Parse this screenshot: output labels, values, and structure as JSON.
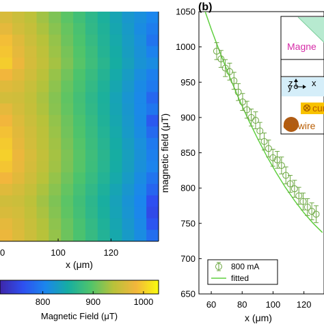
{
  "panel_label": "(b)",
  "colors": {
    "fit_line": "#5fcf3f",
    "marker": "#6aa63f",
    "inset_magenta": "#d62ba7",
    "inset_cu": "#b85c00",
    "colormap": [
      "#3e26a8",
      "#2e4ff0",
      "#1b86ed",
      "#16ada2",
      "#4fc46b",
      "#b8c23a",
      "#f2b63c",
      "#f9fb0e"
    ]
  },
  "chart_data": [
    {
      "type": "heatmap",
      "xlabel": "x (μm)",
      "x_ticks": [
        "100",
        "120"
      ],
      "x_tick_values": [
        100,
        120
      ],
      "x_edge_tick": "0",
      "xlim": [
        78,
        138
      ],
      "colorbar": {
        "label": "Magnetic Field (μT)",
        "ticks": [
          "800",
          "900",
          "1000"
        ],
        "tick_values": [
          800,
          900,
          1000
        ],
        "range": [
          715,
          1030
        ]
      },
      "rows": 20,
      "cols": 13,
      "values": [
        [
          965,
          955,
          945,
          930,
          915,
          900,
          885,
          870,
          855,
          840,
          825,
          815,
          805
        ],
        [
          975,
          960,
          950,
          935,
          920,
          905,
          890,
          872,
          858,
          842,
          828,
          812,
          798
        ],
        [
          990,
          970,
          955,
          940,
          925,
          908,
          893,
          876,
          860,
          845,
          830,
          816,
          790
        ],
        [
          995,
          975,
          960,
          945,
          928,
          912,
          896,
          880,
          862,
          848,
          832,
          818,
          802
        ],
        [
          1000,
          980,
          962,
          948,
          932,
          915,
          898,
          882,
          866,
          850,
          835,
          820,
          812
        ],
        [
          985,
          972,
          958,
          942,
          926,
          910,
          893,
          878,
          862,
          846,
          830,
          814,
          800
        ],
        [
          970,
          965,
          952,
          938,
          922,
          905,
          890,
          874,
          858,
          842,
          826,
          810,
          795
        ],
        [
          960,
          958,
          948,
          934,
          918,
          902,
          886,
          870,
          855,
          838,
          822,
          808,
          780
        ],
        [
          975,
          962,
          950,
          936,
          920,
          904,
          888,
          872,
          856,
          840,
          824,
          808,
          792
        ],
        [
          985,
          968,
          954,
          940,
          924,
          908,
          892,
          875,
          858,
          842,
          826,
          810,
          768
        ],
        [
          992,
          972,
          958,
          943,
          927,
          910,
          894,
          878,
          861,
          845,
          828,
          812,
          782
        ],
        [
          998,
          976,
          960,
          945,
          930,
          913,
          897,
          880,
          864,
          848,
          832,
          816,
          795
        ],
        [
          1002,
          980,
          964,
          948,
          932,
          915,
          899,
          882,
          866,
          850,
          834,
          818,
          800
        ],
        [
          995,
          978,
          962,
          946,
          930,
          914,
          898,
          881,
          865,
          849,
          833,
          817,
          803
        ],
        [
          985,
          972,
          957,
          941,
          925,
          909,
          893,
          877,
          861,
          845,
          829,
          812,
          790
        ],
        [
          970,
          962,
          950,
          935,
          920,
          904,
          888,
          872,
          856,
          840,
          824,
          808,
          778
        ],
        [
          958,
          955,
          944,
          930,
          915,
          900,
          884,
          868,
          852,
          836,
          820,
          805,
          760
        ],
        [
          965,
          960,
          948,
          934,
          918,
          902,
          886,
          870,
          854,
          838,
          822,
          806,
          755
        ],
        [
          975,
          965,
          952,
          938,
          922,
          906,
          890,
          874,
          857,
          841,
          825,
          809,
          765
        ],
        [
          980,
          968,
          955,
          940,
          925,
          908,
          892,
          876,
          860,
          844,
          828,
          812,
          785
        ]
      ]
    },
    {
      "type": "scatter",
      "xlabel": "x (μm)",
      "ylabel": "magnetic field (μT)",
      "xlim": [
        52,
        133
      ],
      "ylim": [
        650,
        1050
      ],
      "x_ticks": [
        "60",
        "80",
        "100",
        "120"
      ],
      "x_tick_values": [
        60,
        80,
        100,
        120
      ],
      "y_ticks": [
        "650",
        "700",
        "750",
        "800",
        "850",
        "900",
        "950",
        "1000",
        "1050"
      ],
      "y_tick_values": [
        650,
        700,
        750,
        800,
        850,
        900,
        950,
        1000,
        1050
      ],
      "series": [
        {
          "name": "800 mA",
          "x": [
            63.5,
            66.3,
            69.1,
            71.9,
            74.7,
            77.5,
            80.3,
            83.1,
            85.9,
            88.7,
            91.5,
            94.3,
            97.1,
            99.9,
            102.7,
            105.5,
            108.3,
            111.1,
            113.9,
            116.7,
            119.5,
            122.3,
            125.1,
            127.9
          ],
          "y": [
            994,
            983,
            970,
            965,
            952,
            936,
            922,
            911,
            900,
            896,
            881,
            866,
            856,
            843,
            840,
            832,
            818,
            806,
            799,
            789,
            781,
            773,
            767,
            763
          ],
          "err": 12
        },
        {
          "name": "fitted",
          "x": [
            54,
            60,
            66,
            72,
            78,
            84,
            90,
            96,
            102,
            108,
            114,
            120,
            126,
            132
          ],
          "y": [
            1063,
            1025,
            990,
            957,
            926,
            897,
            870,
            845,
            822,
            801,
            782,
            765,
            750,
            737
          ]
        }
      ],
      "legend": {
        "position": "bottom-left",
        "entries": [
          "800 mA",
          "fitted"
        ]
      },
      "inset": {
        "labels": [
          "Magne",
          "z",
          "y",
          "x",
          "cur",
          "Cu wire"
        ],
        "position": "top-right"
      }
    }
  ]
}
